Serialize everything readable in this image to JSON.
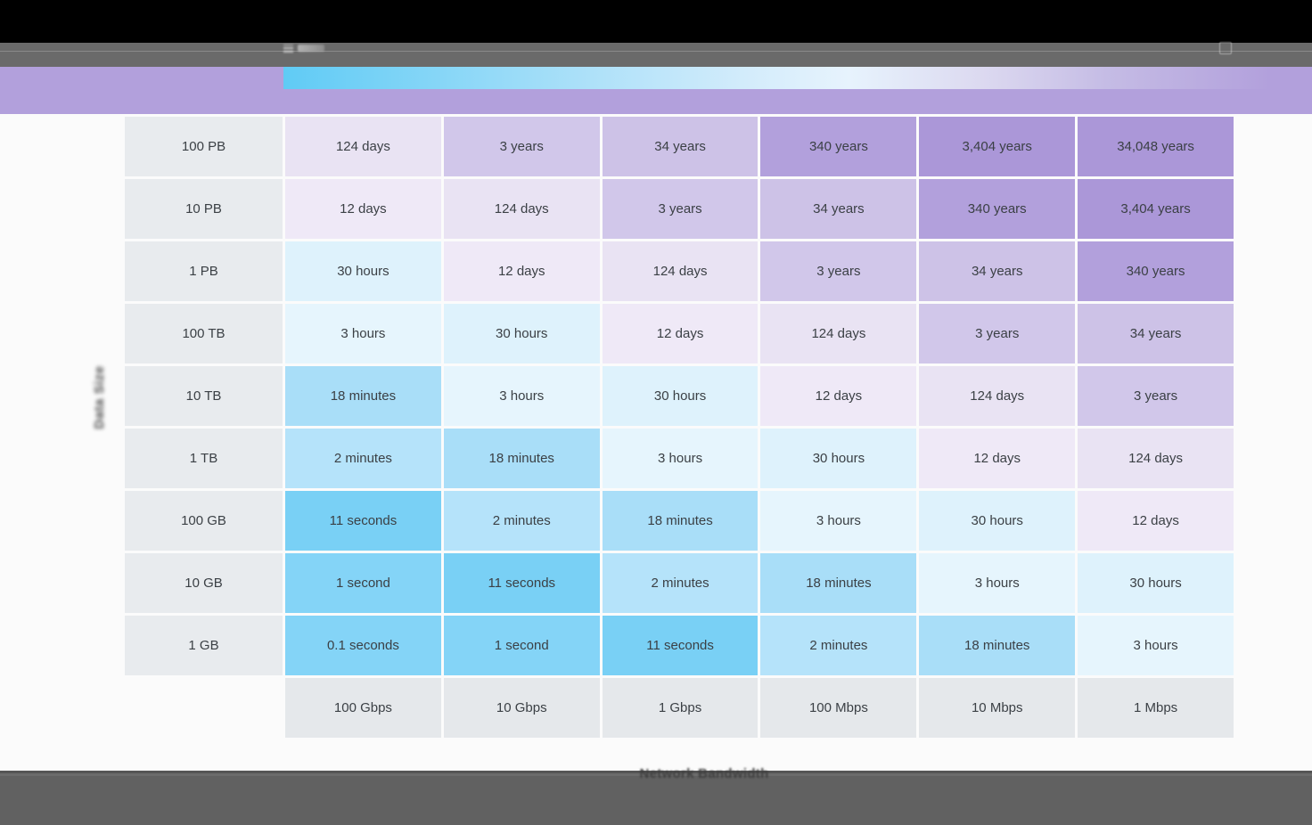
{
  "app": {
    "top_bar_color": "#000000",
    "toolbar_color": "#6a6a6a",
    "bottom_bar_color": "#616161",
    "banner_color": "#b2a0dc",
    "banner_gradient_start": "#60cbf5",
    "banner_gradient_end": "#b2a0dc"
  },
  "chart_data": {
    "type": "heatmap",
    "xlabel": "Network Bandwidth",
    "ylabel": "Data Size",
    "x_categories": [
      "100 Gbps",
      "10 Gbps",
      "1 Gbps",
      "100 Mbps",
      "10 Mbps",
      "1 Mbps"
    ],
    "y_categories": [
      "100 PB",
      "10 PB",
      "1 PB",
      "100 TB",
      "10 TB",
      "1 TB",
      "100 GB",
      "10 GB",
      "1 GB"
    ],
    "rows": [
      [
        "124 days",
        "3 years",
        "34 years",
        "340 years",
        "3,404 years",
        "34,048 years"
      ],
      [
        "12 days",
        "124 days",
        "3 years",
        "34 years",
        "340 years",
        "3,404 years"
      ],
      [
        "30 hours",
        "12 days",
        "124 days",
        "3 years",
        "34 years",
        "340 years"
      ],
      [
        "3 hours",
        "30 hours",
        "12 days",
        "124 days",
        "3 years",
        "34 years"
      ],
      [
        "18 minutes",
        "3 hours",
        "30 hours",
        "12 days",
        "124 days",
        "3 years"
      ],
      [
        "2 minutes",
        "18 minutes",
        "3 hours",
        "30 hours",
        "12 days",
        "124 days"
      ],
      [
        "11 seconds",
        "2 minutes",
        "18 minutes",
        "3 hours",
        "30 hours",
        "12 days"
      ],
      [
        "1 second",
        "11 seconds",
        "2 minutes",
        "18 minutes",
        "3 hours",
        "30 hours"
      ],
      [
        "0.1 seconds",
        "1 second",
        "11 seconds",
        "2 minutes",
        "18 minutes",
        "3 hours"
      ]
    ],
    "value_colors": {
      "0.1 seconds": "#84d4f7",
      "1 second": "#84d4f7",
      "11 seconds": "#79d0f5",
      "2 minutes": "#b5e3fa",
      "18 minutes": "#a9def8",
      "3 hours": "#e6f5fd",
      "30 hours": "#def2fc",
      "12 days": "#efe9f7",
      "124 days": "#e9e3f3",
      "3 years": "#d1c7ea",
      "34 years": "#cdc2e7",
      "340 years": "#b2a0dc",
      "3,404 years": "#ab97d8",
      "34,048 years": "#ab97d8"
    },
    "row_label_bg": "#e8ebee",
    "speed_label_bg": "#e5e8eb",
    "cell_text_color": "#3b4045",
    "grid": "white gutters",
    "legend_position": "none"
  }
}
